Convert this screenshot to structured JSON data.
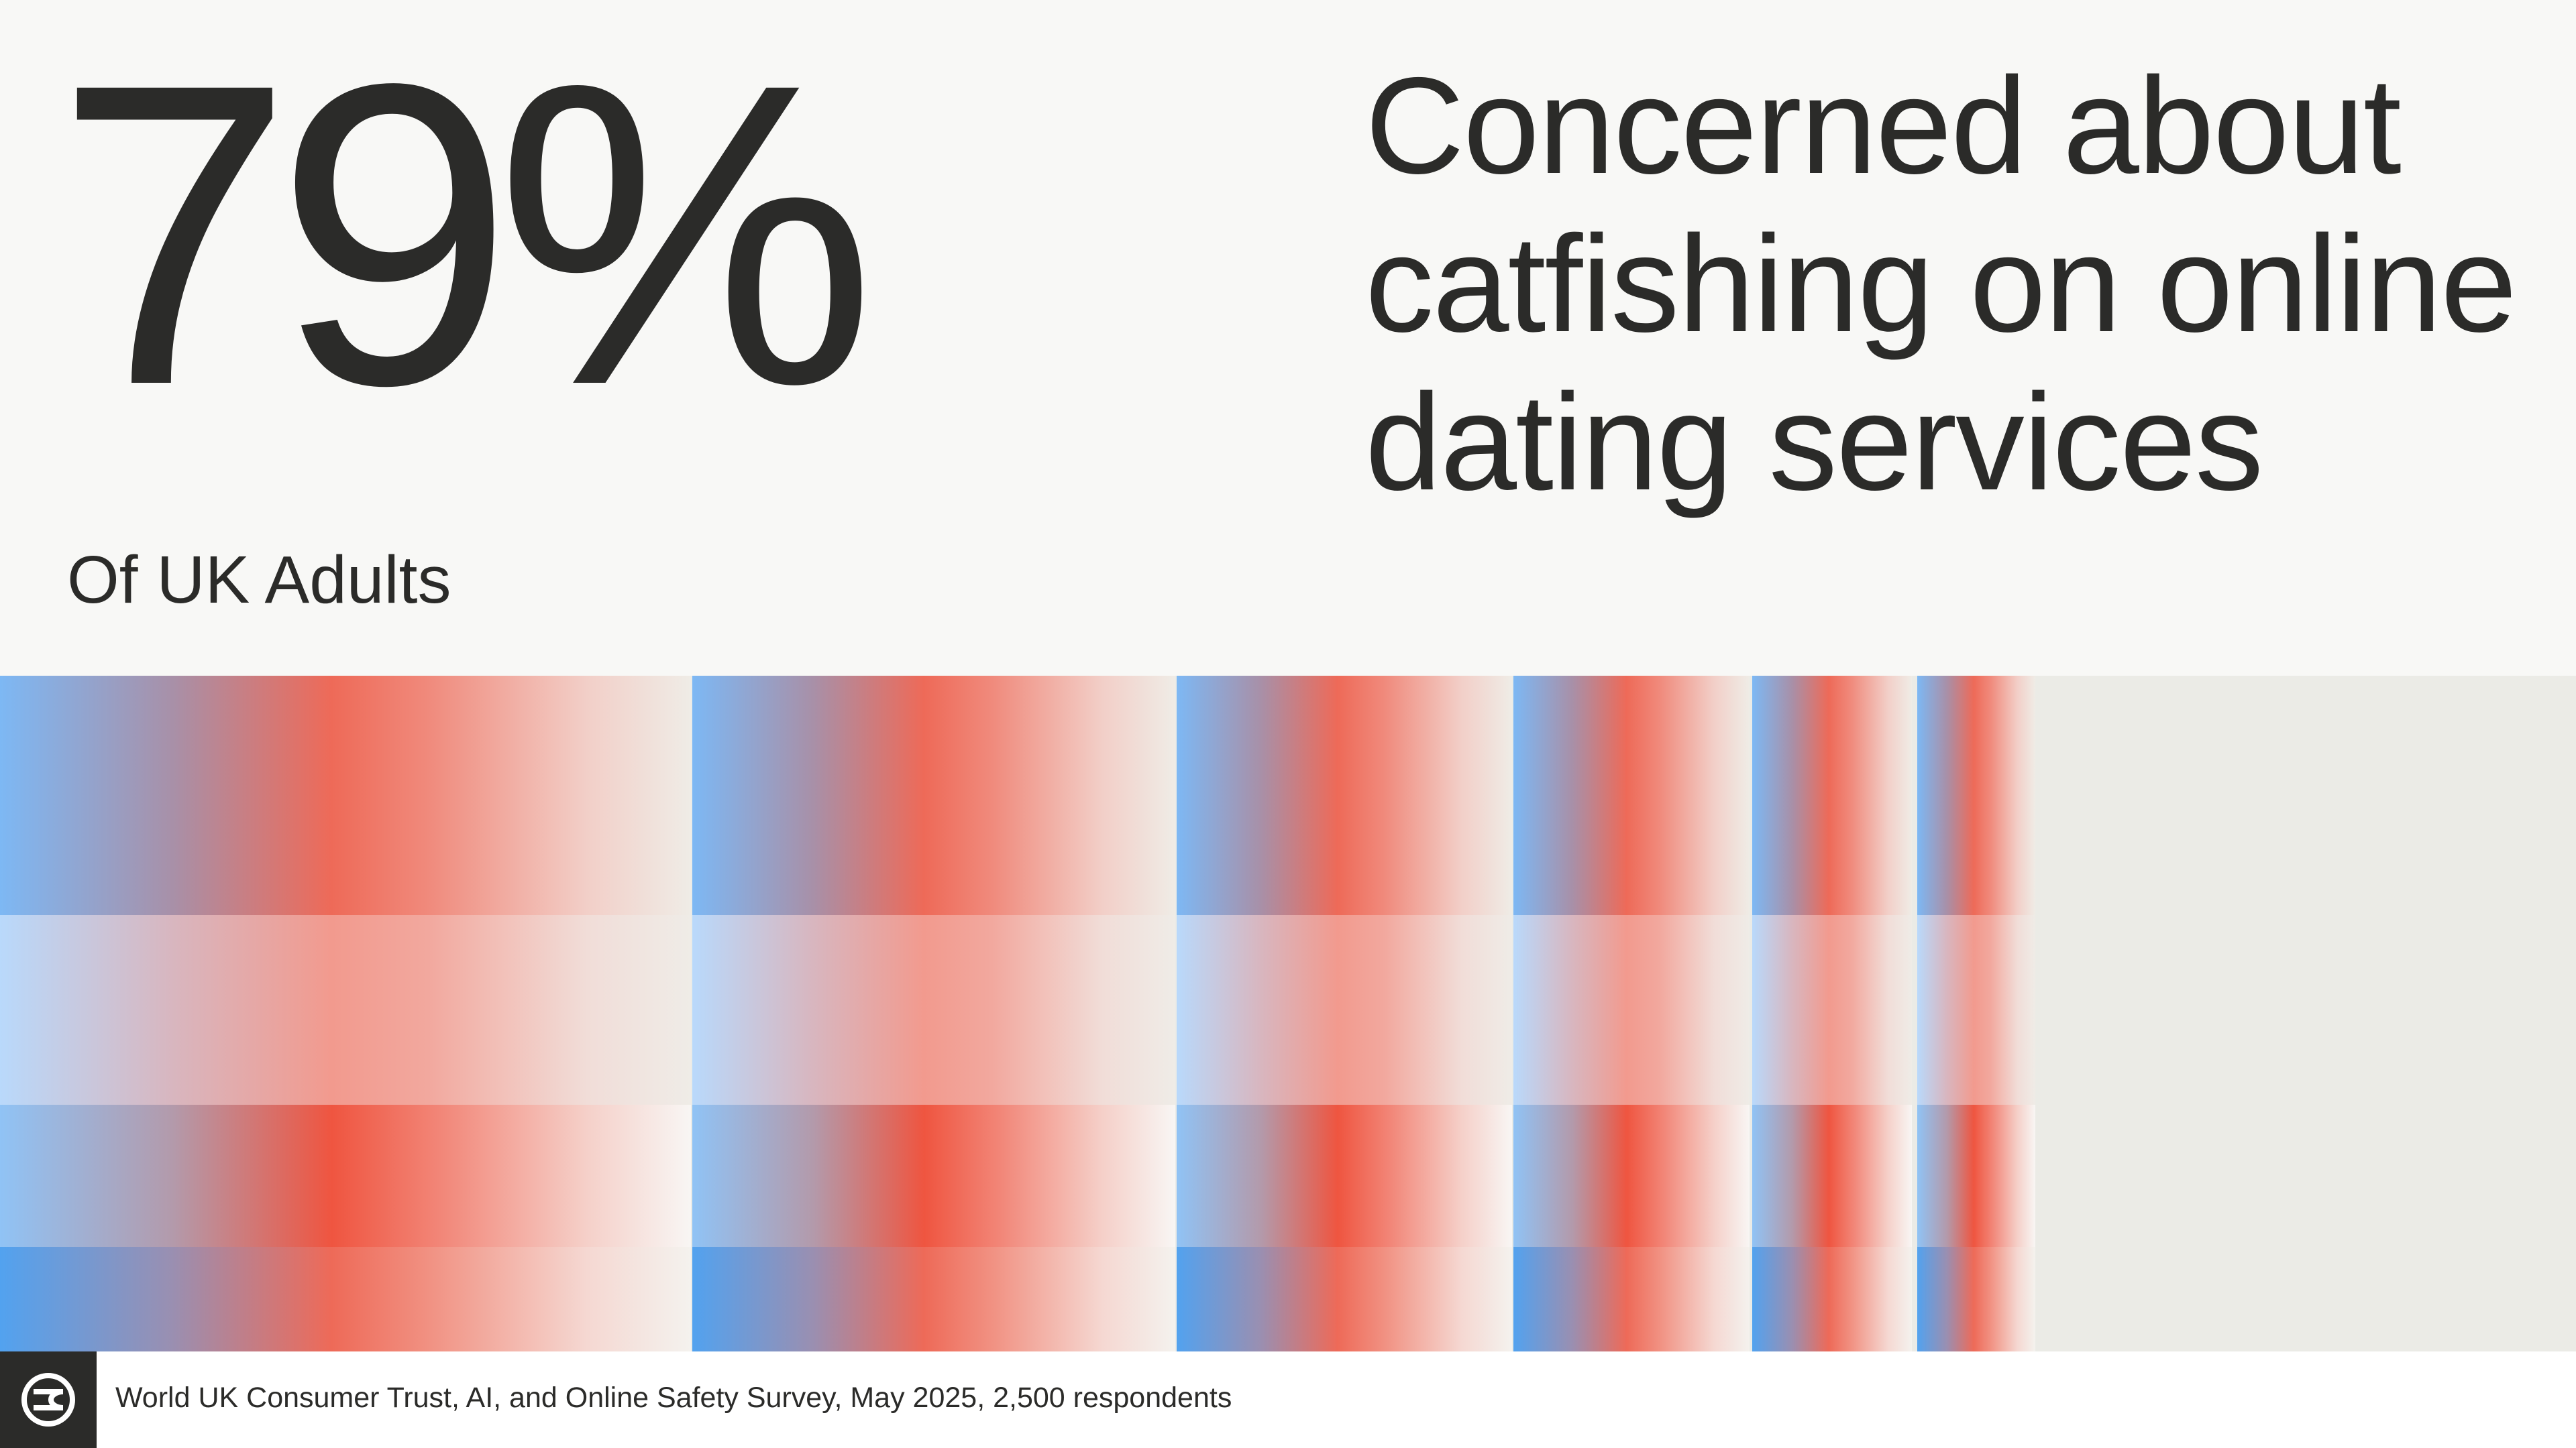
{
  "stat": {
    "value": "79%",
    "label": "Of UK Adults"
  },
  "headline": "Concerned about catfishing on online dating services",
  "bands": {
    "row_colors": [
      "#ee6a58",
      "#f29a8e",
      "#ef5540",
      "#52a2ef"
    ],
    "block_count": 6
  },
  "footer": {
    "logo_icon": "world-logo-icon",
    "source": "World UK Consumer Trust, AI, and Online Safety Survey, May 2025, 2,500 respondents"
  }
}
